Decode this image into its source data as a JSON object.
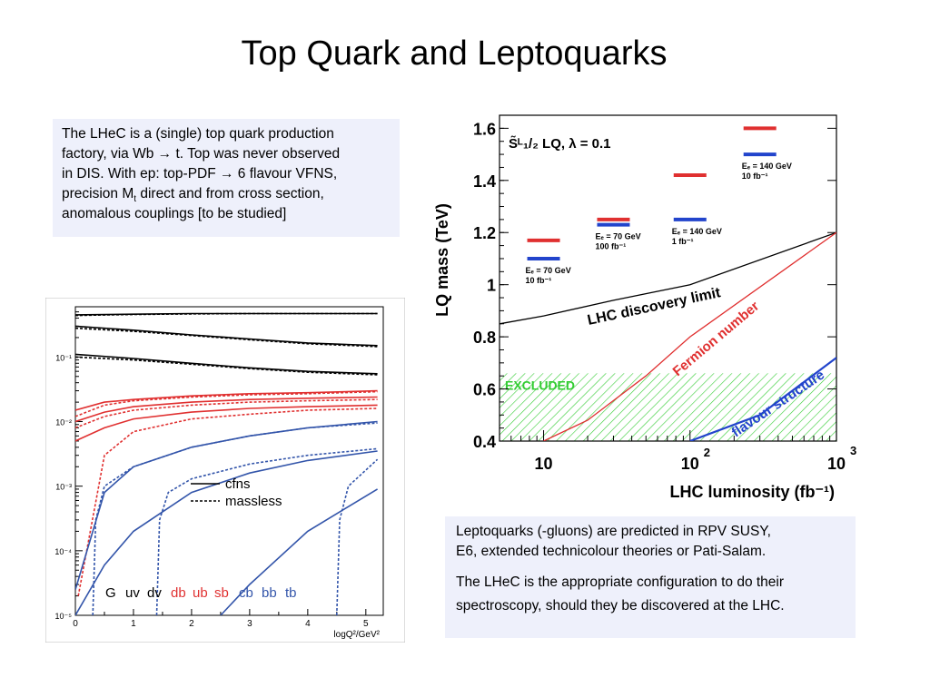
{
  "slide": {
    "title": "Top Quark and Leptoquarks"
  },
  "box1": {
    "line1": "The LHeC is a (single) top quark production",
    "line2": "factory, via Wb → t. Top was never observed",
    "line3": "in DIS. With ep:   top-PDF → 6 flavour VFNS,",
    "line4a": "precision M",
    "line4sub": "t",
    "line4b": " direct and from cross section,",
    "line5": "anomalous couplings  [to be studied]"
  },
  "box2": {
    "p1l1": "Leptoquarks (-gluons) are predicted in RPV SUSY,",
    "p1l2": "E6, extended technicolour theories or Pati-Salam.",
    "p2l1": "The LHeC is the appropriate configuration to do their",
    "p2l2": "spectroscopy, should they be discovered at the LHC."
  },
  "chart_data": [
    {
      "type": "line",
      "title": "",
      "xlabel": "logQ²/GeV²",
      "ylabel": "",
      "xlim": [
        0,
        5.3
      ],
      "ylim": [
        1e-05,
        0.6
      ],
      "yscale": "log",
      "x_ticks": [
        "0",
        "1",
        "2",
        "3",
        "4",
        "5"
      ],
      "y_ticks": [
        "10⁻¹",
        "10⁻²",
        "10⁻³",
        "10⁻⁴",
        "10⁻⁵"
      ],
      "legend": {
        "placement": "center",
        "entries": [
          {
            "label": "cfns",
            "style": "solid"
          },
          {
            "label": "massless",
            "style": "dashed"
          }
        ]
      },
      "flavour_labels": [
        {
          "text": "G",
          "color": "#000000"
        },
        {
          "text": "uv",
          "color": "#000000"
        },
        {
          "text": "dv",
          "color": "#000000"
        },
        {
          "text": "db",
          "color": "#e03030"
        },
        {
          "text": "ub",
          "color": "#e03030"
        },
        {
          "text": "sb",
          "color": "#e03030"
        },
        {
          "text": "cb",
          "color": "#3355aa"
        },
        {
          "text": "bb",
          "color": "#3355aa"
        },
        {
          "text": "tb",
          "color": "#3355aa"
        }
      ],
      "series": [
        {
          "color": "#000000",
          "style": "solid",
          "x": [
            0,
            1,
            2,
            3,
            4,
            5.2
          ],
          "y": [
            0.45,
            0.46,
            0.47,
            0.47,
            0.47,
            0.47
          ]
        },
        {
          "color": "#000000",
          "style": "dashed",
          "x": [
            0,
            1,
            2,
            3,
            4,
            5.2
          ],
          "y": [
            0.44,
            0.455,
            0.465,
            0.47,
            0.47,
            0.47
          ]
        },
        {
          "color": "#000000",
          "style": "solid",
          "x": [
            0,
            1,
            2,
            3,
            4,
            5.2
          ],
          "y": [
            0.3,
            0.26,
            0.22,
            0.19,
            0.165,
            0.15
          ]
        },
        {
          "color": "#000000",
          "style": "dashed",
          "x": [
            0,
            1,
            2,
            3,
            4,
            5.2
          ],
          "y": [
            0.28,
            0.25,
            0.215,
            0.185,
            0.16,
            0.145
          ]
        },
        {
          "color": "#000000",
          "style": "solid",
          "x": [
            0,
            1,
            2,
            3,
            4,
            5.2
          ],
          "y": [
            0.11,
            0.095,
            0.08,
            0.068,
            0.06,
            0.055
          ]
        },
        {
          "color": "#000000",
          "style": "dashed",
          "x": [
            0,
            1,
            2,
            3,
            4,
            5.2
          ],
          "y": [
            0.1,
            0.09,
            0.077,
            0.066,
            0.058,
            0.053
          ]
        },
        {
          "color": "#e03030",
          "style": "solid",
          "x": [
            0,
            0.5,
            1,
            2,
            3,
            4,
            5.2
          ],
          "y": [
            0.015,
            0.02,
            0.022,
            0.025,
            0.027,
            0.028,
            0.03
          ]
        },
        {
          "color": "#e03030",
          "style": "dashed",
          "x": [
            0,
            0.5,
            1,
            2,
            3,
            4,
            5.2
          ],
          "y": [
            0.012,
            0.018,
            0.021,
            0.024,
            0.026,
            0.027,
            0.029
          ]
        },
        {
          "color": "#e03030",
          "style": "solid",
          "x": [
            0,
            0.5,
            1,
            2,
            3,
            4,
            5.2
          ],
          "y": [
            0.01,
            0.014,
            0.017,
            0.02,
            0.022,
            0.023,
            0.024
          ]
        },
        {
          "color": "#e03030",
          "style": "dashed",
          "x": [
            0,
            0.5,
            1,
            2,
            3,
            4,
            5.2
          ],
          "y": [
            0.008,
            0.012,
            0.015,
            0.018,
            0.02,
            0.021,
            0.022
          ]
        },
        {
          "color": "#e03030",
          "style": "solid",
          "x": [
            0,
            0.5,
            1,
            2,
            3,
            4,
            5.2
          ],
          "y": [
            0.005,
            0.008,
            0.011,
            0.014,
            0.016,
            0.017,
            0.018
          ]
        },
        {
          "color": "#e03030",
          "style": "dashed",
          "x": [
            0.05,
            0.5,
            1,
            2,
            3,
            4,
            5.2
          ],
          "y": [
            2e-05,
            0.003,
            0.007,
            0.011,
            0.013,
            0.015,
            0.016
          ]
        },
        {
          "color": "#3355aa",
          "style": "solid",
          "x": [
            0,
            0.5,
            1,
            2,
            3,
            4,
            5.2
          ],
          "y": [
            2.5e-05,
            0.0008,
            0.002,
            0.004,
            0.006,
            0.008,
            0.01
          ]
        },
        {
          "color": "#3355aa",
          "style": "dashed",
          "x": [
            0.3,
            0.35,
            0.5,
            1,
            2,
            3,
            4,
            5.2
          ],
          "y": [
            1e-05,
            0.0003,
            0.001,
            0.002,
            0.004,
            0.006,
            0.008,
            0.0095
          ]
        },
        {
          "color": "#3355aa",
          "style": "solid",
          "x": [
            0,
            0.5,
            1,
            2,
            3,
            4,
            5.2
          ],
          "y": [
            1e-05,
            6e-05,
            0.0002,
            0.0008,
            0.0016,
            0.0025,
            0.0035
          ]
        },
        {
          "color": "#3355aa",
          "style": "dashed",
          "x": [
            1.4,
            1.45,
            1.6,
            2,
            3,
            4,
            5.2
          ],
          "y": [
            1e-05,
            0.0003,
            0.0008,
            0.0013,
            0.0022,
            0.003,
            0.0038
          ]
        },
        {
          "color": "#3355aa",
          "style": "solid",
          "x": [
            2.5,
            3,
            4,
            5.2
          ],
          "y": [
            1e-05,
            3e-05,
            0.0002,
            0.0009
          ]
        },
        {
          "color": "#3355aa",
          "style": "dashed",
          "x": [
            4.5,
            4.55,
            4.7,
            5.2
          ],
          "y": [
            1e-05,
            0.0003,
            0.001,
            0.0026
          ]
        }
      ]
    },
    {
      "type": "line",
      "title": "",
      "xlabel": "LHC luminosity (fb⁻¹)",
      "ylabel": "LQ mass (TeV)",
      "xlim": [
        5,
        1000
      ],
      "xscale": "log",
      "ylim": [
        0.4,
        1.65
      ],
      "x_ticks": [
        "10",
        "10²",
        "10³"
      ],
      "y_ticks": [
        "0.4",
        "0.6",
        "0.8",
        "1",
        "1.2",
        "1.4",
        "1.6"
      ],
      "legend_text": "S̃ᴸ₁/₂   LQ, λ = 0.1",
      "excluded_label": "EXCLUDED",
      "excluded_region": {
        "y_max": 0.66,
        "color": "#33cc33"
      },
      "curves": [
        {
          "label": "LHC discovery limit",
          "color": "#000000",
          "x": [
            5,
            10,
            30,
            100,
            1000
          ],
          "y": [
            0.85,
            0.88,
            0.94,
            1.0,
            1.2
          ]
        },
        {
          "label": "Fermion number",
          "color": "#e03030",
          "x": [
            10,
            20,
            50,
            100,
            1000
          ],
          "y": [
            0.4,
            0.48,
            0.65,
            0.8,
            1.2
          ]
        },
        {
          "label": "flavour structure",
          "color": "#2244cc",
          "x": [
            100,
            300,
            1000
          ],
          "y": [
            0.4,
            0.5,
            0.72
          ]
        }
      ],
      "markers": [
        {
          "x": 10,
          "red_y": 1.17,
          "blue_y": 1.1,
          "label1": "Eₑ = 70 GeV",
          "label2": "10 fb⁻¹"
        },
        {
          "x": 30,
          "red_y": 1.25,
          "blue_y": 1.23,
          "label1": "Eₑ = 70 GeV",
          "label2": "100 fb⁻¹"
        },
        {
          "x": 100,
          "red_y": 1.42,
          "blue_y": 1.25,
          "label1": "Eₑ = 140 GeV",
          "label2": "1 fb⁻¹"
        },
        {
          "x": 300,
          "red_y": 1.6,
          "blue_y": 1.5,
          "label1": "Eₑ = 140 GeV",
          "label2": "10 fb⁻¹"
        }
      ]
    }
  ]
}
